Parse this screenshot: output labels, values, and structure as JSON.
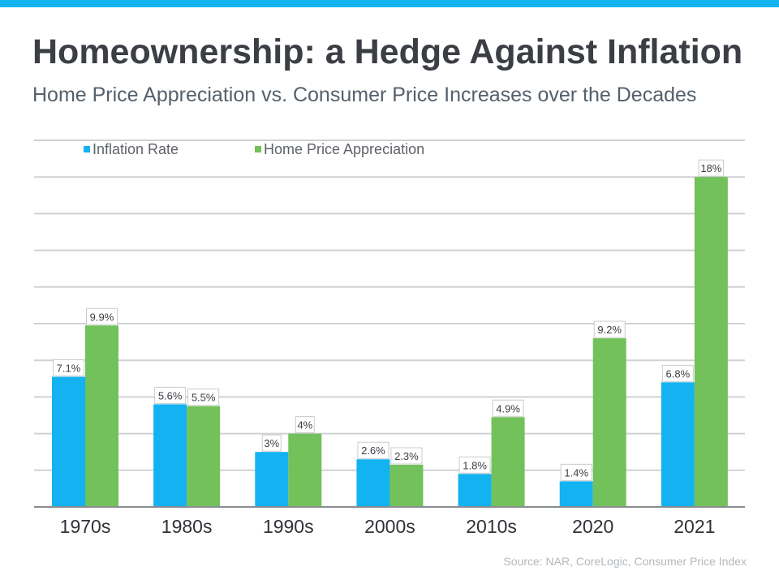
{
  "title": "Homeownership: a Hedge Against Inflation",
  "subtitle": "Home Price Appreciation vs. Consumer Price Increases over the Decades",
  "source": "Source: NAR, CoreLogic, Consumer Price Index",
  "colors": {
    "accent_bar": "#13b2f0",
    "inflation": "#13b2f0",
    "home": "#72c15a"
  },
  "chart_data": {
    "type": "bar",
    "categories": [
      "1970s",
      "1980s",
      "1990s",
      "2000s",
      "2010s",
      "2020",
      "2021"
    ],
    "series": [
      {
        "name": "Inflation Rate",
        "values": [
          7.1,
          5.6,
          3,
          2.6,
          1.8,
          1.4,
          6.8
        ],
        "labels": [
          "7.1%",
          "5.6%",
          "3%",
          "2.6%",
          "1.8%",
          "1.4%",
          "6.8%"
        ],
        "color": "#13b2f0"
      },
      {
        "name": "Home Price Appreciation",
        "values": [
          9.9,
          5.5,
          4,
          2.3,
          4.9,
          9.2,
          18
        ],
        "labels": [
          "9.9%",
          "5.5%",
          "4%",
          "2.3%",
          "4.9%",
          "9.2%",
          "18%"
        ],
        "color": "#72c15a"
      }
    ],
    "ylim": [
      0,
      20
    ],
    "grid": true,
    "legend_position": "top-left"
  }
}
